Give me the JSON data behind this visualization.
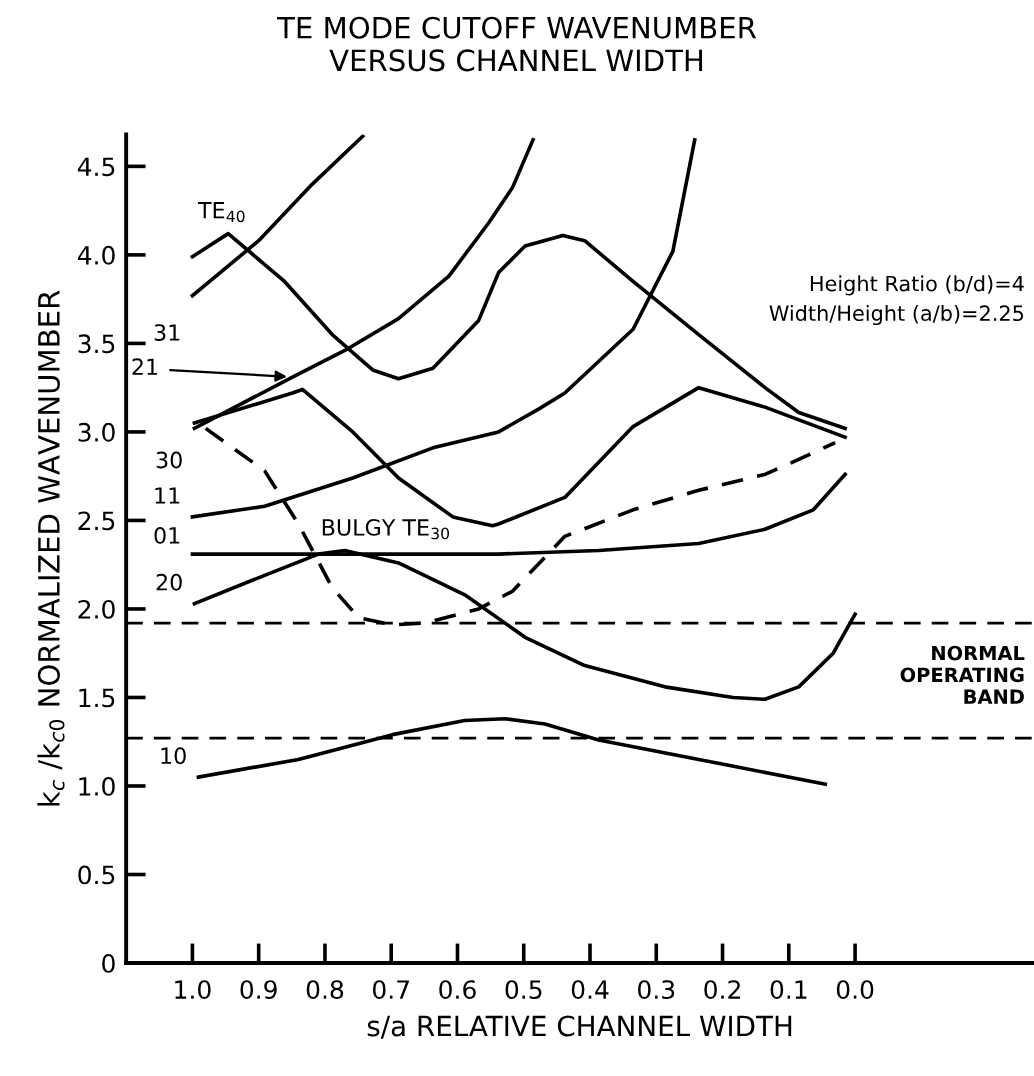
{
  "chart_data": {
    "type": "line",
    "title": "TE MODE CUTOFF WAVENUMBER\nVERSUS CHANNEL WIDTH",
    "xlabel": "s/a RELATIVE CHANNEL WIDTH",
    "ylabel": "k$_{c}$ /k$_{c0}$ NORMALIZED WAVENUMBER",
    "xlim": [
      1.1,
      -0.27
    ],
    "xticks": [
      {
        "value": 1.0,
        "label": "1.0"
      },
      0.9,
      0.8,
      0.7,
      0.6,
      0.5,
      0.4,
      0.3,
      0.2,
      0.1,
      {
        "value": 0.0,
        "label": "0.0"
      }
    ],
    "ylim": [
      0,
      4.68
    ],
    "yticks": [
      0,
      0.5,
      {
        "value": 1.0,
        "label": "1.0"
      },
      1.5,
      {
        "value": 2.0,
        "label": "2.0"
      },
      2.5,
      {
        "value": 3.0,
        "label": "3.0"
      },
      3.5,
      {
        "value": 4.0,
        "label": "4.0"
      },
      4.5
    ],
    "grid": false,
    "legend": false,
    "marker": "none",
    "series": [
      {
        "name": "TE$_{40}$",
        "color": "#000000",
        "line_style": "solid",
        "x": [
          1.0,
          0.946,
          0.861,
          0.789,
          0.728,
          0.689,
          0.637,
          0.568,
          0.538,
          0.498,
          0.441,
          0.408,
          0.335,
          0.236,
          0.136,
          0.085,
          0.015
        ],
        "values": [
          3.99,
          4.12,
          3.85,
          3.55,
          3.35,
          3.3,
          3.36,
          3.63,
          3.9,
          4.05,
          4.11,
          4.08,
          3.85,
          3.55,
          3.25,
          3.11,
          3.02
        ]
      },
      {
        "name": "31",
        "color": "#000000",
        "line_style": "solid",
        "x": [
          1.0,
          0.9,
          0.819,
          0.743
        ],
        "values": [
          3.77,
          4.08,
          4.4,
          4.67
        ]
      },
      {
        "name": "21",
        "color": "#000000",
        "line_style": "solid",
        "x": [
          0.997,
          0.849,
          0.77,
          0.689,
          0.613,
          0.553,
          0.517,
          0.486
        ],
        "values": [
          3.02,
          3.31,
          3.46,
          3.64,
          3.88,
          4.18,
          4.38,
          4.65
        ]
      },
      {
        "name": "30",
        "color": "#000000",
        "line_style": "solid",
        "x": [
          0.997,
          0.849,
          0.834,
          0.758,
          0.689,
          0.607,
          0.547,
          0.538,
          0.438,
          0.335,
          0.236,
          0.136,
          0.015
        ],
        "values": [
          3.05,
          3.22,
          3.24,
          3.0,
          2.74,
          2.52,
          2.47,
          2.48,
          2.63,
          3.03,
          3.25,
          3.14,
          2.97
        ]
      },
      {
        "name": "11",
        "color": "#000000",
        "line_style": "solid",
        "x": [
          1.0,
          0.891,
          0.758,
          0.637,
          0.538,
          0.477,
          0.438,
          0.335,
          0.275,
          0.242
        ],
        "values": [
          2.52,
          2.58,
          2.74,
          2.91,
          3.0,
          3.13,
          3.22,
          3.58,
          4.02,
          4.65
        ]
      },
      {
        "name": "01",
        "color": "#000000",
        "line_style": "solid",
        "x": [
          1.0,
          0.538,
          0.387,
          0.236,
          0.136,
          0.063,
          0.015
        ],
        "values": [
          2.31,
          2.31,
          2.33,
          2.37,
          2.45,
          2.56,
          2.76
        ]
      },
      {
        "name": "20",
        "color": "#000000",
        "line_style": "solid",
        "x": [
          0.997,
          0.891,
          0.81,
          0.77,
          0.689,
          0.589,
          0.498,
          0.408,
          0.287,
          0.184,
          0.136,
          0.085,
          0.033,
          0.0
        ],
        "values": [
          2.03,
          2.19,
          2.31,
          2.33,
          2.26,
          2.08,
          1.84,
          1.68,
          1.56,
          1.5,
          1.49,
          1.56,
          1.75,
          1.97
        ]
      },
      {
        "name": "BULGY TE$_{30}$",
        "color": "#000000",
        "line_style": "dashed",
        "x": [
          0.98,
          0.891,
          0.84,
          0.789,
          0.749,
          0.698,
          0.65,
          0.568,
          0.517,
          0.438,
          0.335,
          0.236,
          0.136,
          0.076,
          0.03
        ],
        "values": [
          3.02,
          2.78,
          2.48,
          2.12,
          1.95,
          1.91,
          1.92,
          2.0,
          2.1,
          2.41,
          2.56,
          2.67,
          2.76,
          2.86,
          2.94
        ]
      },
      {
        "name": "10",
        "color": "#000000",
        "line_style": "solid",
        "x": [
          0.991,
          0.84,
          0.698,
          0.589,
          0.529,
          0.468,
          0.387,
          0.236,
          0.045
        ],
        "values": [
          1.05,
          1.15,
          1.29,
          1.37,
          1.38,
          1.35,
          1.26,
          1.15,
          1.01
        ]
      }
    ],
    "ref_lines": [
      {
        "axis": "y",
        "value": 1.92,
        "label": "NORMAL\nOPERATING\nBAND",
        "line_style": "dashed"
      },
      {
        "axis": "y",
        "value": 1.27,
        "line_style": "dashed"
      }
    ],
    "annotations": [
      "Height Ratio (b/d)=4\nWidth/Height (a/b)=2.25"
    ]
  }
}
